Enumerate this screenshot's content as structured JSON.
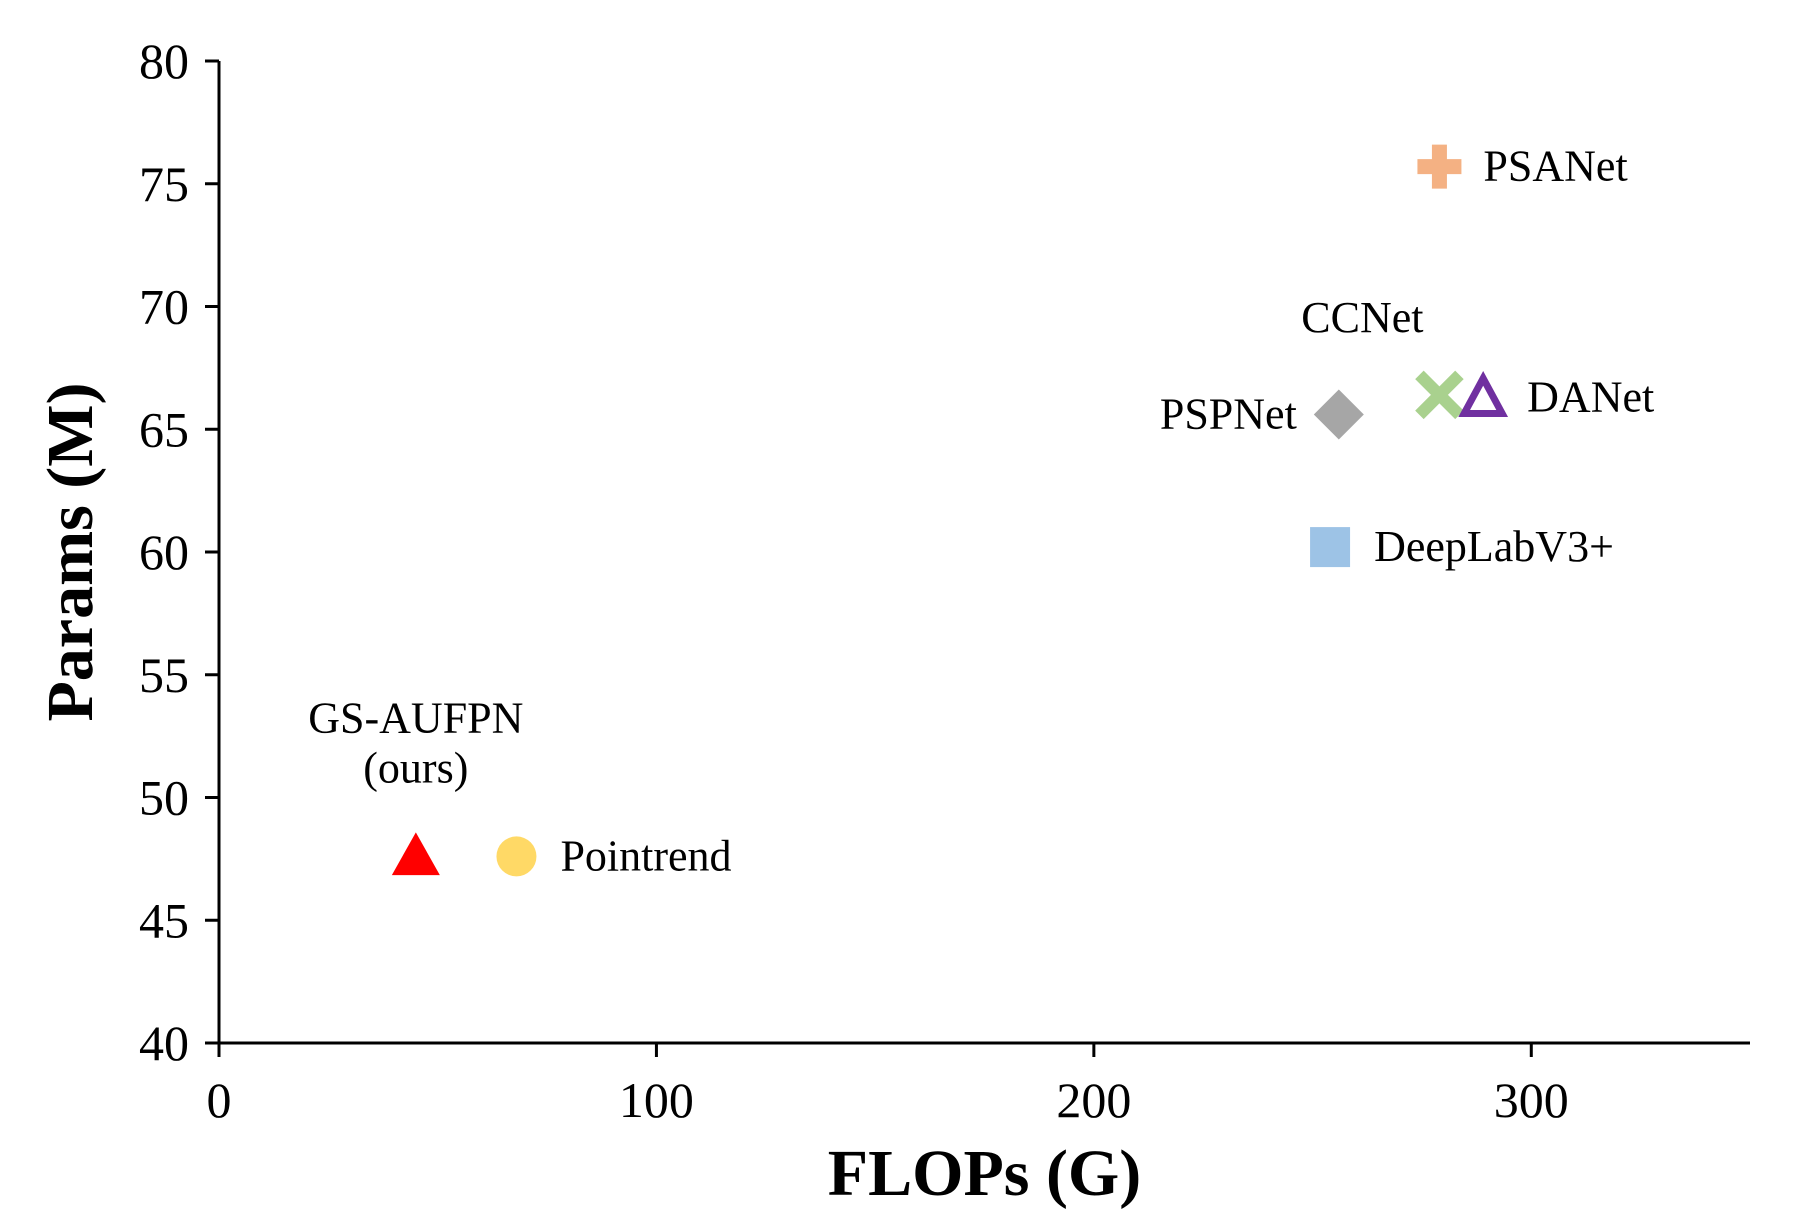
{
  "chart_data": {
    "type": "scatter",
    "title": "",
    "xlabel": "FLOPs (G)",
    "ylabel": "Params (M)",
    "xlim": [
      0,
      350
    ],
    "ylim": [
      40,
      80
    ],
    "xticks": [
      0,
      100,
      200,
      300
    ],
    "yticks": [
      40,
      45,
      50,
      55,
      60,
      65,
      70,
      75,
      80
    ],
    "grid": false,
    "legend": "none",
    "points": [
      {
        "label": [
          "GS-AUFPN",
          "(ours)"
        ],
        "x": 45,
        "y": 47.6,
        "marker": "triangle",
        "color": "#ff0000",
        "label_pos": "above"
      },
      {
        "label": [
          "Pointrend"
        ],
        "x": 68,
        "y": 47.6,
        "marker": "circle",
        "color": "#ffd966",
        "label_pos": "right"
      },
      {
        "label": [
          "PSANet"
        ],
        "x": 279,
        "y": 75.7,
        "marker": "plus",
        "color": "#f4b183",
        "label_pos": "right"
      },
      {
        "label": [
          "CCNet"
        ],
        "x": 279,
        "y": 66.4,
        "marker": "x",
        "color": "#a9d18e",
        "label_pos": "above-left"
      },
      {
        "label": [
          "DANet"
        ],
        "x": 289,
        "y": 66.3,
        "marker": "triangle-open",
        "color": "#7030a0",
        "label_pos": "right"
      },
      {
        "label": [
          "PSPNet"
        ],
        "x": 256,
        "y": 65.6,
        "marker": "diamond",
        "color": "#a6a6a6",
        "label_pos": "left"
      },
      {
        "label": [
          "DeepLabV3+"
        ],
        "x": 254,
        "y": 60.2,
        "marker": "square",
        "color": "#9dc3e6",
        "label_pos": "right"
      }
    ]
  }
}
